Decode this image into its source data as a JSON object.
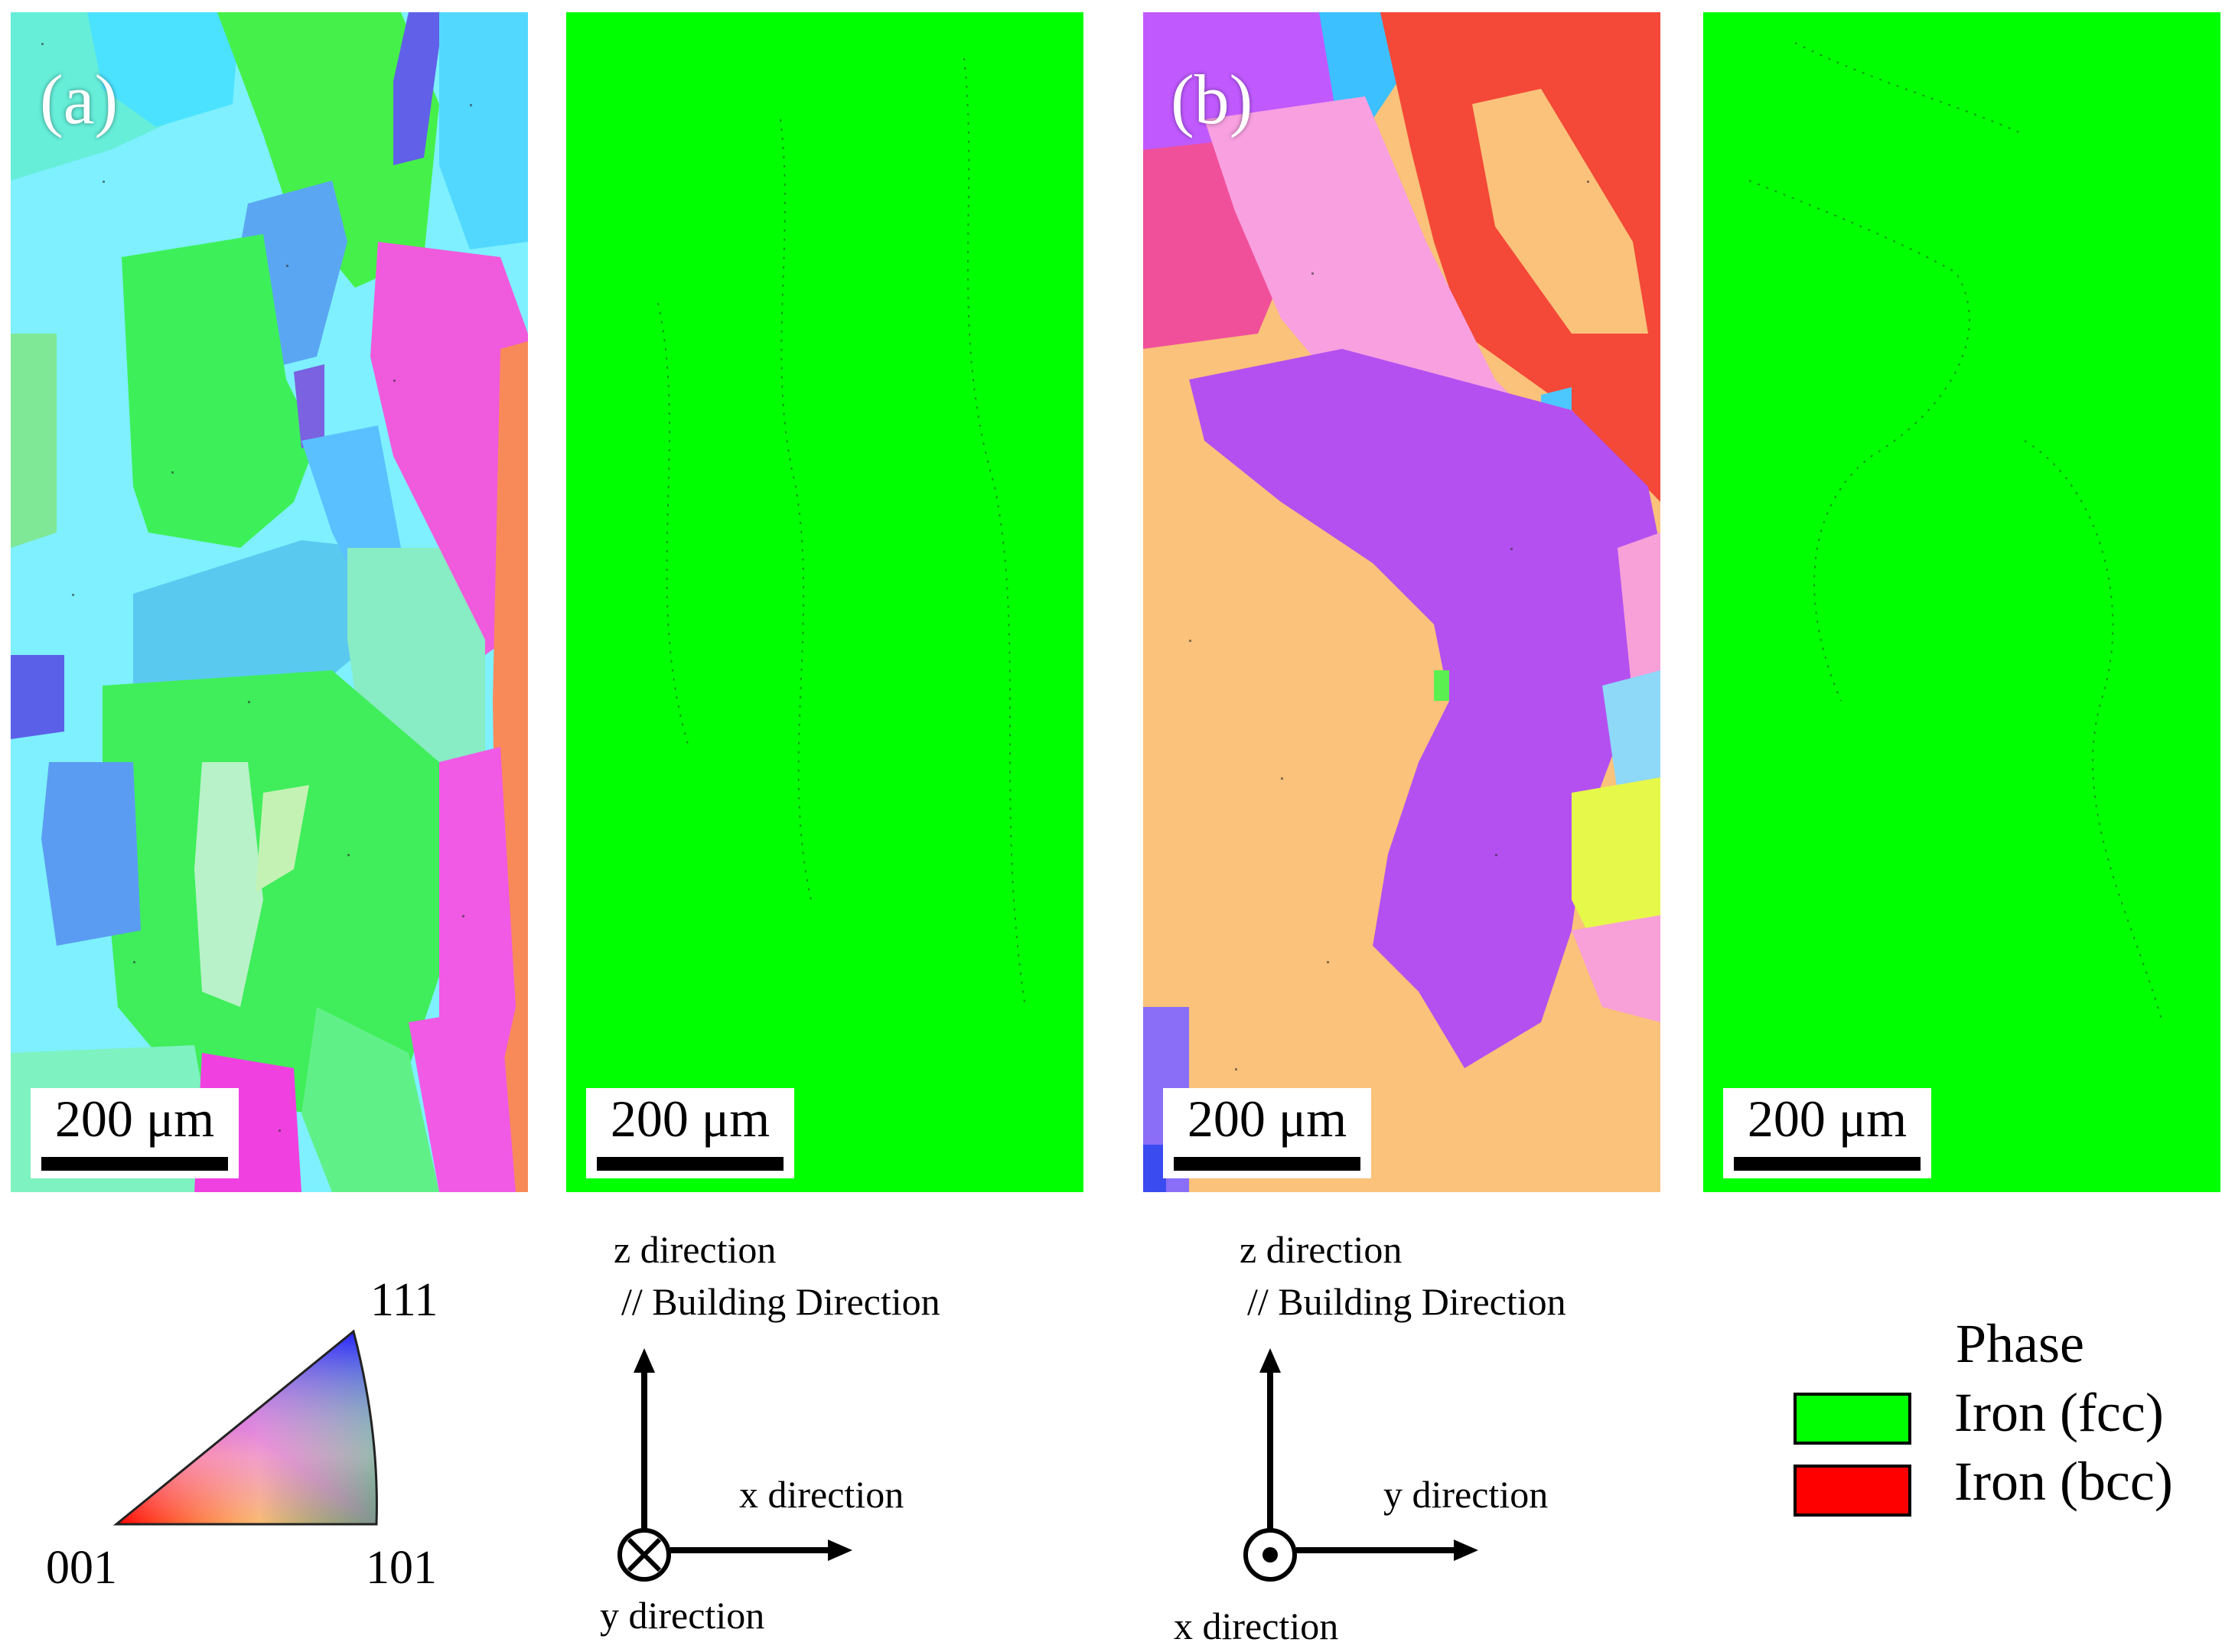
{
  "panels": {
    "a_label": "(a)",
    "b_label": "(b)",
    "scale_bar": "200 μm"
  },
  "ipf_legend": {
    "vertex_111": "111",
    "vertex_001": "001",
    "vertex_101": "101"
  },
  "axes_a": {
    "vertical_label": "z direction",
    "building_label": "// Building Direction",
    "horizontal_label": "x direction",
    "out_of_plane_label": "y direction",
    "out_of_plane_symbol": "into-page"
  },
  "axes_b": {
    "vertical_label": "z direction",
    "building_label": "// Building Direction",
    "horizontal_label": "y direction",
    "out_of_plane_label": "x direction",
    "out_of_plane_symbol": "out-of-page"
  },
  "phase_legend": {
    "title": "Phase",
    "items": [
      {
        "label": "Iron (fcc)",
        "color": "#00ff00"
      },
      {
        "label": "Iron (bcc)",
        "color": "#ff0000"
      }
    ]
  }
}
